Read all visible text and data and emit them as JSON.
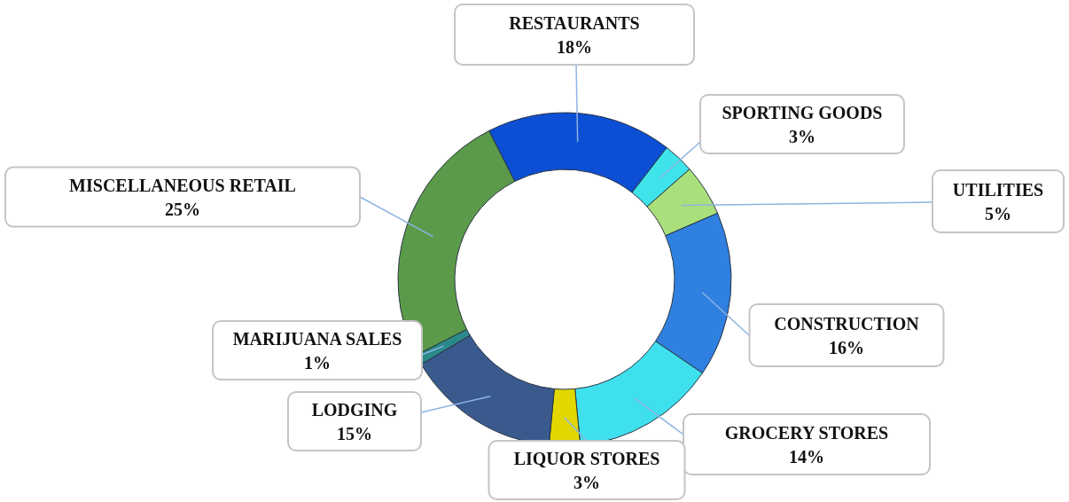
{
  "chart_data": {
    "type": "donut",
    "categories": [
      "RESTAURANTS",
      "SPORTING GOODS",
      "UTILITIES",
      "CONSTRUCTION",
      "GROCERY STORES",
      "LIQUOR STORES",
      "LODGING",
      "MARIJUANA SALES",
      "MISCELLANEOUS RETAIL"
    ],
    "values": [
      18,
      3,
      5,
      16,
      14,
      3,
      15,
      1,
      25
    ],
    "colors": [
      "#0c4fd4",
      "#3fe3ea",
      "#a9e07c",
      "#2f80e0",
      "#3fe0ee",
      "#e2d800",
      "#3a5a8e",
      "#2a8a8a",
      "#5b9a4a"
    ],
    "value_labels": [
      "18%",
      "3%",
      "5%",
      "16%",
      "14%",
      "3%",
      "15%",
      "1%",
      "25%"
    ],
    "legend": false
  }
}
